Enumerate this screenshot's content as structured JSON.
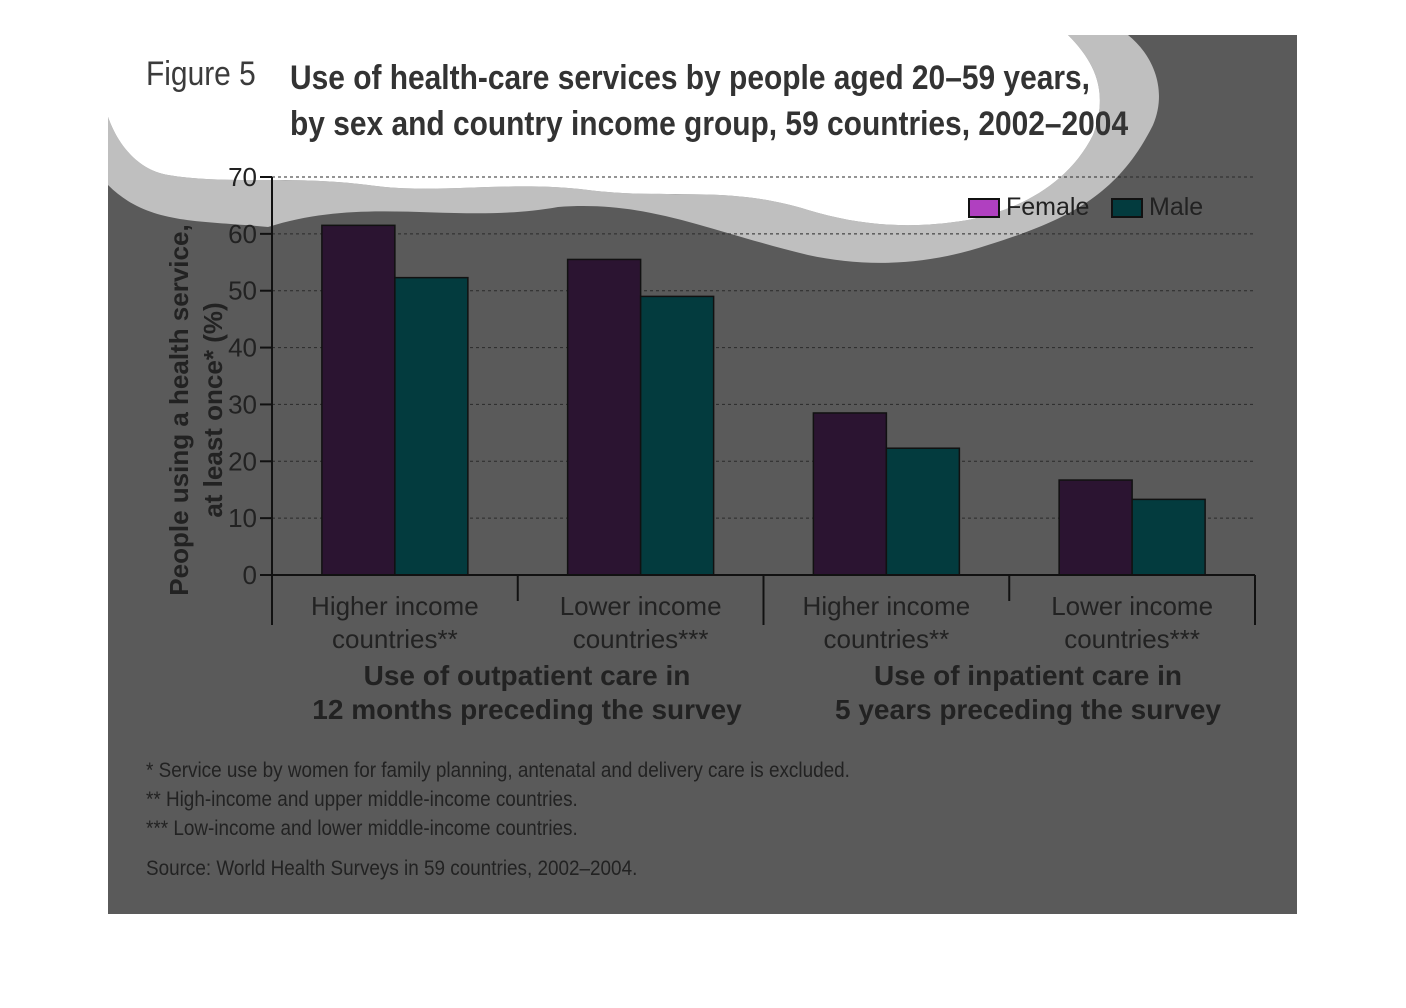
{
  "figure": {
    "label": "Figure 5",
    "title_line1": "Use of health-care services by people aged 20–59 years,",
    "title_line2": "by sex and country income group, 59 countries, 2002–2004"
  },
  "colors": {
    "background": "#5a5a5a",
    "female": "#2b1431",
    "male": "#033b3e",
    "female_legend": "#b040c0"
  },
  "chart_data": {
    "type": "bar",
    "ylabel_line1": "People using a health service,",
    "ylabel_line2": "at least once* (%)",
    "ylim": [
      0,
      70
    ],
    "yticks": [
      0,
      10,
      20,
      30,
      40,
      50,
      60,
      70
    ],
    "grid": true,
    "legend_position": "top-right",
    "categories": [
      "Higher income countries**",
      "Lower income countries***",
      "Higher income countries**",
      "Lower income countries***"
    ],
    "category_lines": [
      [
        "Higher income",
        "countries**"
      ],
      [
        "Lower income",
        "countries***"
      ],
      [
        "Higher income",
        "countries**"
      ],
      [
        "Lower income",
        "countries***"
      ]
    ],
    "groups": [
      {
        "label_line1": "Use of outpatient care in",
        "label_line2": "12 months preceding the survey"
      },
      {
        "label_line1": "Use of inpatient care in",
        "label_line2": "5 years preceding the survey"
      }
    ],
    "series": [
      {
        "name": "Female",
        "values": [
          61.5,
          55.5,
          28.5,
          16.7
        ]
      },
      {
        "name": "Male",
        "values": [
          52.3,
          49.0,
          22.3,
          13.3
        ]
      }
    ]
  },
  "footnotes": [
    "* Service use by women for family planning, antenatal and delivery care is excluded.",
    "** High-income and upper middle-income countries.",
    "*** Low-income and lower middle-income countries."
  ],
  "source": "Source: World Health Surveys in 59 countries, 2002–2004."
}
